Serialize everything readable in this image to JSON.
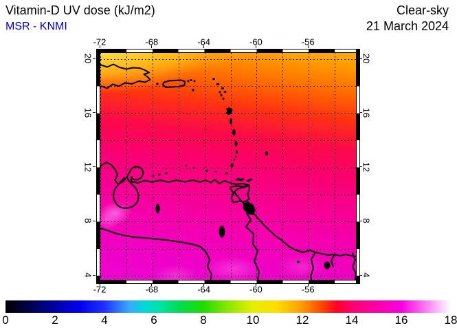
{
  "header": {
    "title": "Vitamin-D UV dose (kJ/m2)",
    "source": "MSR - KNMI",
    "sky": "Clear-sky",
    "date": "21 March 2024"
  },
  "map": {
    "lon_ticks": [
      {
        "label": "-72",
        "deg": -72
      },
      {
        "label": "-68",
        "deg": -68
      },
      {
        "label": "-64",
        "deg": -64
      },
      {
        "label": "-60",
        "deg": -60
      },
      {
        "label": "-56",
        "deg": -56
      }
    ],
    "lat_ticks": [
      {
        "label": "20",
        "deg": 20
      },
      {
        "label": "16",
        "deg": 16
      },
      {
        "label": "12",
        "deg": 12
      },
      {
        "label": "8",
        "deg": 8
      },
      {
        "label": "4",
        "deg": 4
      }
    ],
    "grid": {
      "lon_from": -72,
      "lon_to": -54,
      "lat_from": 4,
      "lat_to": 20,
      "step_deg": 2
    },
    "region": "Caribbean / northern South America"
  },
  "colorbar": {
    "min": 0,
    "max": 18,
    "unit": "kJ/m2",
    "ticks": [
      {
        "label": "0",
        "value": 0
      },
      {
        "label": "2",
        "value": 2
      },
      {
        "label": "4",
        "value": 4
      },
      {
        "label": "6",
        "value": 6
      },
      {
        "label": "8",
        "value": 8
      },
      {
        "label": "10",
        "value": 10
      },
      {
        "label": "12",
        "value": 12
      },
      {
        "label": "14",
        "value": 14
      },
      {
        "label": "16",
        "value": 16
      },
      {
        "label": "18",
        "value": 18
      }
    ],
    "stops": [
      {
        "v": 0,
        "c": "#000000"
      },
      {
        "v": 1,
        "c": "#00004f"
      },
      {
        "v": 2,
        "c": "#0000a4"
      },
      {
        "v": 3,
        "c": "#0000ef"
      },
      {
        "v": 4,
        "c": "#2030ff"
      },
      {
        "v": 5,
        "c": "#38aaff"
      },
      {
        "v": 5.6,
        "c": "#00d8d8"
      },
      {
        "v": 6.3,
        "c": "#00e2a0"
      },
      {
        "v": 7,
        "c": "#00dc55"
      },
      {
        "v": 8,
        "c": "#1edc00"
      },
      {
        "v": 9,
        "c": "#8ce800"
      },
      {
        "v": 10,
        "c": "#e6ee00"
      },
      {
        "v": 11,
        "c": "#ffdd00"
      },
      {
        "v": 12,
        "c": "#ff9900"
      },
      {
        "v": 12.8,
        "c": "#ff4400"
      },
      {
        "v": 13.4,
        "c": "#ff0026"
      },
      {
        "v": 14,
        "c": "#ff006e"
      },
      {
        "v": 15,
        "c": "#fa00a8"
      },
      {
        "v": 16,
        "c": "#f600e2"
      },
      {
        "v": 17,
        "c": "#ff7df2"
      },
      {
        "v": 18,
        "c": "#ffffff"
      }
    ]
  },
  "colors": {
    "source_text": "#0000cc",
    "coastline": "#000000",
    "grid": "#000000"
  }
}
